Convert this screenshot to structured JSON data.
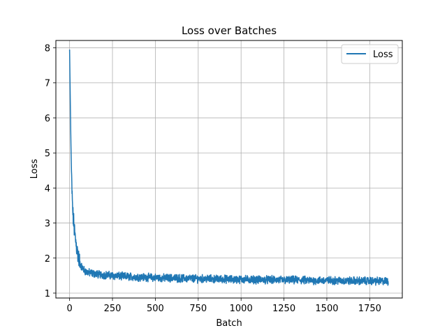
{
  "chart_data": {
    "type": "line",
    "title": "Loss over Batches",
    "xlabel": "Batch",
    "ylabel": "Loss",
    "xlim": [
      -80,
      1940
    ],
    "ylim": [
      0.86,
      8.21
    ],
    "xticks": [
      0,
      250,
      500,
      750,
      1000,
      1250,
      1500,
      1750
    ],
    "yticks": [
      1,
      2,
      3,
      4,
      5,
      6,
      7,
      8
    ],
    "grid": true,
    "legend": "top-right",
    "series": [
      {
        "name": "Loss",
        "color": "#1f77b4",
        "anchor_x": [
          0,
          4,
          8,
          12,
          16,
          20,
          25,
          30,
          35,
          40,
          45,
          50,
          55,
          60,
          70,
          80,
          90,
          100,
          125,
          150,
          175,
          200,
          250,
          300,
          350,
          400,
          450,
          500,
          550,
          600,
          650,
          700,
          750,
          800,
          850,
          900,
          950,
          1000,
          1050,
          1100,
          1150,
          1200,
          1250,
          1300,
          1350,
          1400,
          1450,
          1500,
          1550,
          1600,
          1650,
          1700,
          1750,
          1800,
          1860
        ],
        "anchor_y": [
          7.95,
          6.5,
          5.2,
          4.2,
          3.6,
          3.2,
          2.95,
          2.7,
          2.5,
          2.35,
          2.2,
          2.05,
          1.95,
          1.85,
          1.75,
          1.68,
          1.63,
          1.6,
          1.57,
          1.55,
          1.53,
          1.52,
          1.5,
          1.48,
          1.47,
          1.46,
          1.45,
          1.44,
          1.43,
          1.43,
          1.42,
          1.42,
          1.41,
          1.41,
          1.4,
          1.4,
          1.39,
          1.39,
          1.39,
          1.38,
          1.38,
          1.38,
          1.37,
          1.37,
          1.37,
          1.36,
          1.36,
          1.36,
          1.36,
          1.35,
          1.35,
          1.35,
          1.35,
          1.34,
          1.34
        ],
        "noise_amplitude": 0.09,
        "samples": 1860
      }
    ]
  }
}
